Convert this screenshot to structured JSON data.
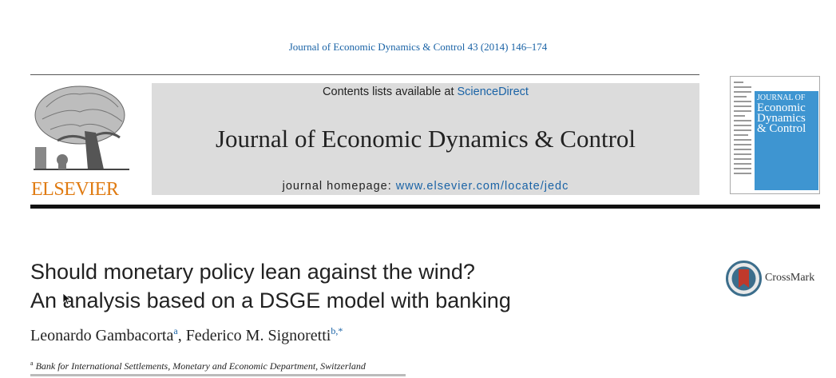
{
  "header": {
    "citation": "Journal of Economic Dynamics & Control 43 (2014) 146–174",
    "publisher": "ELSEVIER",
    "contents_prefix": "Contents lists available at ",
    "contents_link": "ScienceDirect",
    "journal_name": "Journal of Economic Dynamics & Control",
    "homepage_prefix": "journal homepage: ",
    "homepage_url": "www.elsevier.com/locate/jedc",
    "cover_title": "JOURNAL OF\nEconomic\nDynamics\n& Control"
  },
  "article": {
    "title_line1": "Should monetary policy lean against the wind?",
    "title_line2": "An analysis based on a DSGE model with banking",
    "authors": [
      {
        "name": "Leonardo Gambacorta",
        "marks": "a"
      },
      {
        "name": "Federico M. Signoretti",
        "marks": "b,*"
      }
    ],
    "affiliation_a_mark": "a",
    "affiliation_a": "Bank for International Settlements, Monetary and Economic Department, Switzerland",
    "crossmark_label": "CrossMark"
  },
  "colors": {
    "link_blue": "#1a63a6",
    "elsevier_orange": "#e07b12",
    "cover_blue": "#3e95d1",
    "banner_gray": "#dcdcdc"
  },
  "icons": [
    "elsevier-tree-logo",
    "journal-cover-thumbnail",
    "crossmark-icon",
    "mouse-cursor-icon"
  ]
}
